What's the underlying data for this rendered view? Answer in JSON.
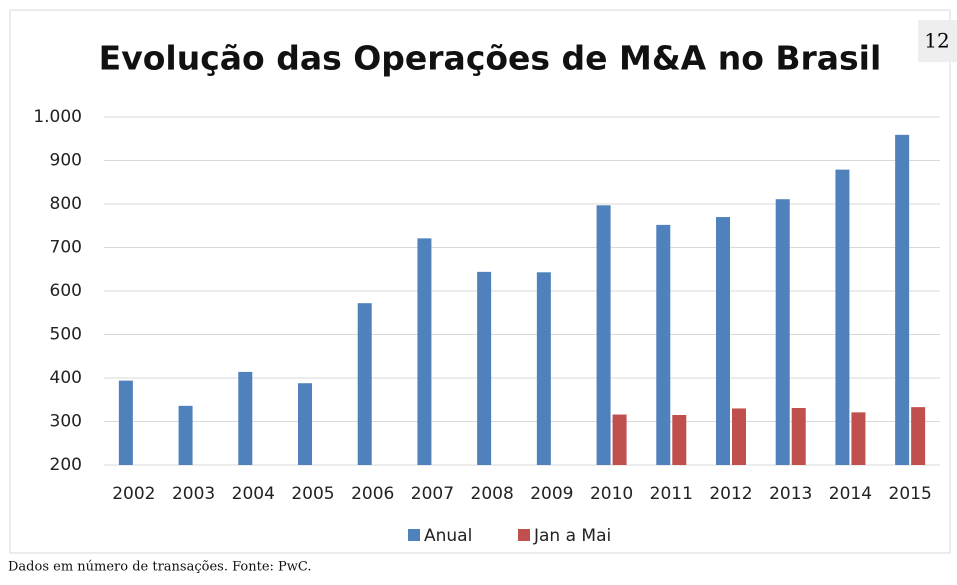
{
  "page_number": "12",
  "footnote": "Dados em número de transações. Fonte: PwC.",
  "chart_data": {
    "type": "bar",
    "title": "Evolução das Operações de M&A no Brasil",
    "categories": [
      "2002",
      "2003",
      "2004",
      "2005",
      "2006",
      "2007",
      "2008",
      "2009",
      "2010",
      "2011",
      "2012",
      "2013",
      "2014",
      "2015"
    ],
    "series": [
      {
        "name": "Anual",
        "color": "#4f81bd",
        "values": [
          394,
          336,
          414,
          388,
          572,
          721,
          644,
          643,
          797,
          752,
          770,
          811,
          879,
          959
        ]
      },
      {
        "name": "Jan a Mai",
        "color": "#c0504d",
        "values": [
          null,
          null,
          null,
          null,
          null,
          null,
          null,
          null,
          316,
          315,
          330,
          331,
          321,
          333
        ]
      }
    ],
    "ylim": [
      200,
      1000
    ],
    "yticks": [
      200,
      300,
      400,
      500,
      600,
      700,
      800,
      900,
      {
        "value": 1000,
        "label": "1.000"
      }
    ],
    "grid": true,
    "legend": "bottom"
  }
}
